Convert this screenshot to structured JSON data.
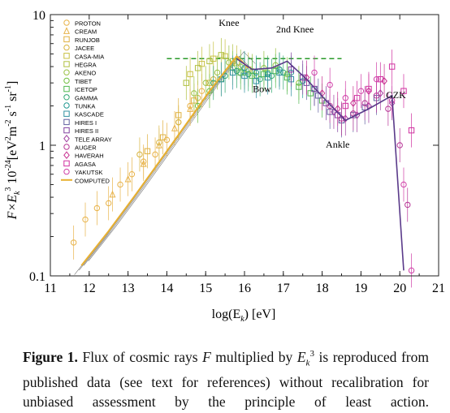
{
  "chart_data": {
    "type": "scatter",
    "yscale": "log",
    "xlim": [
      11,
      21
    ],
    "ylim": [
      0.1,
      10
    ],
    "xticks": [
      "11",
      "12",
      "13",
      "14",
      "15",
      "16",
      "17",
      "18",
      "19",
      "20",
      "21"
    ],
    "yticks": [
      "10",
      "1",
      "0.1"
    ],
    "xlabel": "log(E",
    "xlabel_sub": "k",
    "xlabel_unit": ") [eV]",
    "ylabel": "F×E",
    "ylabel_sub": "k",
    "ylabel_sup": "3",
    "ylabel_mid": " 10",
    "ylabel_exp": "-24",
    "ylabel_unit": "[eV",
    "ylabel_unit_sup": "2",
    "ylabel_unit_rest": "m",
    "ylabel_m_sup": "-2",
    "ylabel_s": " s",
    "ylabel_s_sup": "-1",
    "ylabel_sr": " sr",
    "ylabel_sr_sup": "-1",
    "ylabel_close": "]",
    "legend_position": "upper-left",
    "legend": [
      {
        "name": "PROTON",
        "color": "#e8b34a",
        "marker": "circle"
      },
      {
        "name": "CREAM",
        "color": "#e8b34a",
        "marker": "triangle"
      },
      {
        "name": "RUNJOB",
        "color": "#e0b040",
        "marker": "square"
      },
      {
        "name": "JACEE",
        "color": "#d8b440",
        "marker": "circle"
      },
      {
        "name": "CASA-MIA",
        "color": "#c8c040",
        "marker": "square"
      },
      {
        "name": "HEGRA",
        "color": "#b0c040",
        "marker": "square"
      },
      {
        "name": "AKENO",
        "color": "#98c040",
        "marker": "circle"
      },
      {
        "name": "TIBET",
        "color": "#70c040",
        "marker": "circle"
      },
      {
        "name": "ICETOP",
        "color": "#50b850",
        "marker": "square"
      },
      {
        "name": "GAMMA",
        "color": "#30a870",
        "marker": "circle"
      },
      {
        "name": "TUNKA",
        "color": "#209890",
        "marker": "circle"
      },
      {
        "name": "KASCADE",
        "color": "#3090a0",
        "marker": "square"
      },
      {
        "name": "HIRES I",
        "color": "#6060a0",
        "marker": "square"
      },
      {
        "name": "HIRES II",
        "color": "#8040a0",
        "marker": "square"
      },
      {
        "name": "TELE ARRAY",
        "color": "#a040a0",
        "marker": "diamond"
      },
      {
        "name": "AUGER",
        "color": "#b83898",
        "marker": "circle"
      },
      {
        "name": "HAVERAH",
        "color": "#c83090",
        "marker": "diamond"
      },
      {
        "name": "AGASA",
        "color": "#d030a0",
        "marker": "square"
      },
      {
        "name": "YAKUTSK",
        "color": "#d040a8",
        "marker": "circle"
      },
      {
        "name": "COMPUTED",
        "color": "#e8b030",
        "marker": "line"
      }
    ],
    "annotations": [
      {
        "text": "Knee",
        "x": 15.6,
        "y": 8.2
      },
      {
        "text": "2nd Knee",
        "x": 17.3,
        "y": 7.3
      },
      {
        "text": "Bow",
        "x": 16.45,
        "y": 2.55
      },
      {
        "text": "Ankle",
        "x": 18.4,
        "y": 0.96
      },
      {
        "text": "GZK",
        "x": 19.9,
        "y": 2.3
      }
    ],
    "reference_line": {
      "style": "dashed",
      "color": "#2a9a2a",
      "y": 4.6,
      "x": [
        14.0,
        18.5
      ]
    },
    "computed_curve": {
      "name": "COMPUTED",
      "color": "#e8b030",
      "x": [
        11.8,
        12.5,
        13.2,
        14.0,
        14.6,
        15.1,
        15.5,
        15.8,
        16.1
      ],
      "y": [
        0.12,
        0.22,
        0.42,
        0.9,
        1.6,
        2.6,
        3.7,
        4.8,
        3.9
      ]
    },
    "fitted_curve": {
      "color": "#5a3a8a",
      "x": [
        15.8,
        16.2,
        16.7,
        17.1,
        17.6,
        18.1,
        18.6,
        19.2,
        19.8,
        20.1
      ],
      "y": [
        4.6,
        3.8,
        3.9,
        4.4,
        3.2,
        2.2,
        1.55,
        1.9,
        2.4,
        0.11
      ]
    },
    "series": [
      {
        "name": "PROTON",
        "color": "#e8b34a",
        "marker": "circle",
        "x": [
          11.6,
          11.9,
          12.2,
          12.5,
          12.8,
          13.1,
          13.4,
          13.7,
          14.0,
          14.3,
          14.6,
          14.9
        ],
        "y": [
          0.18,
          0.27,
          0.33,
          0.36,
          0.5,
          0.6,
          0.75,
          0.85,
          1.1,
          1.5,
          2.0,
          2.6
        ]
      },
      {
        "name": "CREAM",
        "color": "#e8b34a",
        "marker": "triangle",
        "x": [
          12.6,
          13.0,
          13.4,
          13.8,
          14.2,
          14.6
        ],
        "y": [
          0.42,
          0.55,
          0.72,
          1.0,
          1.35,
          1.9
        ]
      },
      {
        "name": "RUNJOB",
        "color": "#e0b040",
        "marker": "square",
        "x": [
          13.5,
          13.9,
          14.3,
          14.7,
          15.1
        ],
        "y": [
          0.9,
          1.15,
          1.7,
          2.2,
          3.0
        ]
      },
      {
        "name": "JACEE",
        "color": "#d8b440",
        "marker": "circle",
        "x": [
          13.3,
          13.8,
          14.3,
          14.8,
          15.2
        ],
        "y": [
          0.85,
          1.05,
          1.5,
          2.3,
          3.2
        ]
      },
      {
        "name": "CASA-MIA",
        "color": "#c8c040",
        "marker": "square",
        "x": [
          14.6,
          14.9,
          15.2,
          15.5,
          15.8,
          16.1
        ],
        "y": [
          3.5,
          4.2,
          4.6,
          4.8,
          4.3,
          3.8
        ]
      },
      {
        "name": "HEGRA",
        "color": "#b0c040",
        "marker": "square",
        "x": [
          14.5,
          14.8,
          15.1,
          15.4,
          15.7
        ],
        "y": [
          3.0,
          3.9,
          4.4,
          4.9,
          4.4
        ]
      },
      {
        "name": "AKENO",
        "color": "#98c040",
        "marker": "circle",
        "x": [
          14.7,
          15.0,
          15.3,
          15.6,
          15.9,
          16.2,
          16.5,
          16.8,
          17.1,
          17.4
        ],
        "y": [
          2.5,
          3.0,
          3.6,
          4.3,
          4.0,
          3.7,
          3.9,
          4.1,
          3.5,
          3.0
        ]
      },
      {
        "name": "TIBET",
        "color": "#70c040",
        "marker": "circle",
        "x": [
          14.8,
          15.1,
          15.4,
          15.7,
          16.0,
          16.3,
          16.6,
          16.9
        ],
        "y": [
          2.0,
          2.6,
          3.2,
          3.9,
          3.6,
          3.4,
          3.6,
          3.8
        ]
      },
      {
        "name": "ICETOP",
        "color": "#50b850",
        "marker": "square",
        "x": [
          15.9,
          16.2,
          16.5,
          16.8,
          17.1,
          17.4,
          17.7,
          18.0
        ],
        "y": [
          3.6,
          3.4,
          3.5,
          3.7,
          3.3,
          2.8,
          2.5,
          2.2
        ]
      },
      {
        "name": "GAMMA",
        "color": "#30a870",
        "marker": "circle",
        "x": [
          15.2,
          15.5,
          15.8,
          16.1,
          16.4,
          16.7,
          17.0
        ],
        "y": [
          3.0,
          3.4,
          3.7,
          3.5,
          3.2,
          3.4,
          3.6
        ]
      },
      {
        "name": "TUNKA",
        "color": "#209890",
        "marker": "circle",
        "x": [
          16.0,
          16.3,
          16.6,
          16.9,
          17.2,
          17.5,
          17.8
        ],
        "y": [
          3.9,
          3.6,
          3.5,
          3.8,
          3.6,
          3.1,
          2.7
        ]
      },
      {
        "name": "KASCADE",
        "color": "#3090a0",
        "marker": "square",
        "x": [
          15.4,
          15.7,
          16.0,
          16.3,
          16.6,
          16.9,
          17.2
        ],
        "y": [
          3.2,
          3.6,
          3.4,
          3.1,
          3.3,
          3.6,
          3.2
        ]
      },
      {
        "name": "HIRES I",
        "color": "#6060a0",
        "marker": "square",
        "x": [
          17.6,
          17.9,
          18.2,
          18.5,
          18.8,
          19.1,
          19.4
        ],
        "y": [
          3.0,
          2.4,
          1.8,
          1.55,
          1.7,
          1.95,
          2.3
        ]
      },
      {
        "name": "HIRES II",
        "color": "#8040a0",
        "marker": "square",
        "x": [
          17.2,
          17.5,
          17.8,
          18.1,
          18.4
        ],
        "y": [
          3.8,
          3.3,
          2.7,
          2.1,
          1.7
        ]
      },
      {
        "name": "TELE ARRAY",
        "color": "#a040a0",
        "marker": "diamond",
        "x": [
          18.3,
          18.6,
          18.9,
          19.2,
          19.5,
          19.8
        ],
        "y": [
          1.8,
          1.6,
          1.7,
          2.0,
          2.5,
          2.1
        ]
      },
      {
        "name": "AUGER",
        "color": "#b83898",
        "marker": "circle",
        "x": [
          18.2,
          18.5,
          18.8,
          19.1,
          19.4,
          19.7,
          20.0,
          20.2
        ],
        "y": [
          2.0,
          1.6,
          1.75,
          2.1,
          2.4,
          1.9,
          1.0,
          0.35
        ]
      },
      {
        "name": "HAVERAH",
        "color": "#c83090",
        "marker": "diamond",
        "x": [
          17.6,
          18.0,
          18.4,
          18.8,
          19.2,
          19.6
        ],
        "y": [
          3.3,
          2.5,
          1.9,
          2.1,
          2.6,
          3.1
        ]
      },
      {
        "name": "AGASA",
        "color": "#d030a0",
        "marker": "square",
        "x": [
          18.6,
          18.9,
          19.2,
          19.5,
          19.8,
          20.1,
          20.3
        ],
        "y": [
          2.0,
          2.3,
          2.7,
          3.2,
          4.0,
          2.6,
          1.3
        ]
      },
      {
        "name": "YAKUTSK",
        "color": "#d040a8",
        "marker": "circle",
        "x": [
          17.8,
          18.2,
          18.6,
          19.0,
          19.4,
          19.8,
          20.1,
          20.3
        ],
        "y": [
          3.6,
          2.9,
          2.3,
          2.6,
          3.2,
          2.2,
          0.5,
          0.11
        ]
      }
    ]
  },
  "caption": {
    "label": "Figure 1.",
    "t1": " Flux of cosmic rays ",
    "F": "F",
    "t2": " multiplied by ",
    "E": "E",
    "E_sub": "k",
    "E_sup": "3",
    "t3": " is reproduced from published data (see text for references) without recalibration for unbiased assessment by the principle of least action."
  }
}
